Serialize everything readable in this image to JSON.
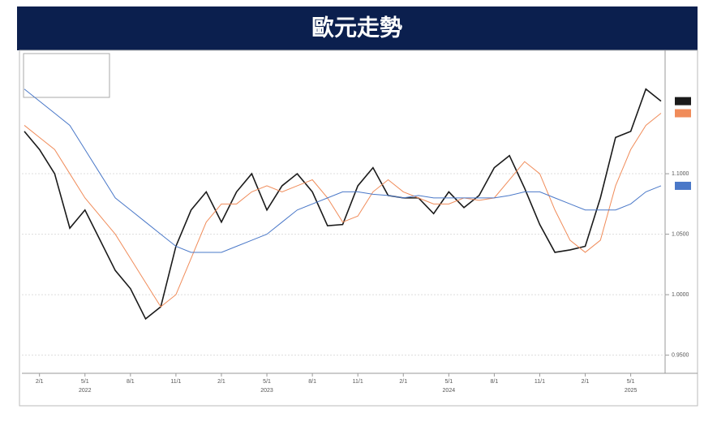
{
  "chart_data": {
    "type": "line",
    "title": "歐元走勢",
    "categories": [
      null,
      "2/1",
      null,
      null,
      "5/1",
      null,
      null,
      "8/1",
      null,
      null,
      "11/1",
      null,
      null,
      "2/1",
      null,
      null,
      "5/1",
      null,
      null,
      "8/1",
      null,
      null,
      "11/1",
      null,
      null,
      "2/1",
      null,
      null,
      "5/1",
      null,
      null,
      "8/1",
      null,
      null,
      "11/1",
      null,
      null,
      "2/1",
      null,
      null,
      "5/1",
      null,
      null
    ],
    "x_groups": [
      "2022",
      "2023",
      "2024",
      "2025"
    ],
    "series": [
      {
        "color": "#1a1a1a",
        "values": [
          1.135,
          1.12,
          1.1,
          1.055,
          1.07,
          1.045,
          1.02,
          1.005,
          0.98,
          0.99,
          1.04,
          1.07,
          1.085,
          1.06,
          1.085,
          1.1,
          1.07,
          1.09,
          1.1,
          1.085,
          1.057,
          1.058,
          1.09,
          1.105,
          1.082,
          1.08,
          1.08,
          1.067,
          1.085,
          1.072,
          1.082,
          1.105,
          1.115,
          1.088,
          1.058,
          1.035,
          1.037,
          1.04,
          1.08,
          1.13,
          1.135,
          1.17,
          1.16
        ]
      },
      {
        "color": "#f08c5a",
        "values": [
          1.14,
          1.13,
          1.12,
          1.1,
          1.08,
          1.065,
          1.05,
          1.03,
          1.01,
          0.99,
          1.0,
          1.03,
          1.06,
          1.075,
          1.075,
          1.085,
          1.09,
          1.085,
          1.09,
          1.095,
          1.08,
          1.06,
          1.065,
          1.085,
          1.095,
          1.085,
          1.08,
          1.075,
          1.075,
          1.08,
          1.078,
          1.08,
          1.095,
          1.11,
          1.1,
          1.07,
          1.045,
          1.035,
          1.045,
          1.09,
          1.12,
          1.14,
          1.15
        ]
      },
      {
        "color": "#4a78c8",
        "values": [
          1.17,
          1.16,
          1.15,
          1.14,
          1.12,
          1.1,
          1.08,
          1.07,
          1.06,
          1.05,
          1.04,
          1.035,
          1.035,
          1.035,
          1.04,
          1.045,
          1.05,
          1.06,
          1.07,
          1.075,
          1.08,
          1.085,
          1.085,
          1.083,
          1.082,
          1.08,
          1.082,
          1.08,
          1.08,
          1.08,
          1.08,
          1.08,
          1.082,
          1.085,
          1.085,
          1.08,
          1.075,
          1.07,
          1.07,
          1.07,
          1.075,
          1.085,
          1.09
        ]
      }
    ],
    "ylim": [
      0.935,
      1.2
    ],
    "yticks": [
      {
        "value": 0.95,
        "label": "0.9500"
      },
      {
        "value": 1.0,
        "label": "1.0000"
      },
      {
        "value": 1.05,
        "label": "1.0500"
      },
      {
        "value": 1.1,
        "label": "1.1000"
      }
    ],
    "grid": true
  }
}
